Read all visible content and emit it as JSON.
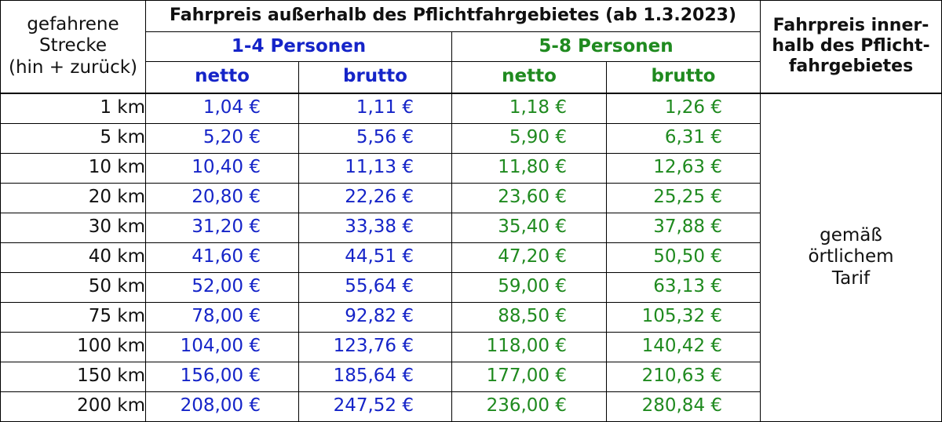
{
  "header": {
    "distance_label": "gefahrene\nStrecke\n(hin + zurück)",
    "outside_title": "Fahrpreis außerhalb des Pflichtfahrgebietes (ab 1.3.2023)",
    "group1": "1-4 Personen",
    "group2": "5-8 Personen",
    "netto": "netto",
    "brutto": "brutto",
    "inside_title": "Fahrpreis inner-\nhalb des Pflicht-\nfahrgebietes"
  },
  "inside_value": "gemäß\nörtlichem\nTarif",
  "colors": {
    "blue": "#1524c8",
    "green": "#1f8a1f"
  },
  "rows": [
    {
      "km": "1 km",
      "n1": "1,04 €",
      "b1": "1,11 €",
      "n2": "1,18 €",
      "b2": "1,26 €"
    },
    {
      "km": "5 km",
      "n1": "5,20 €",
      "b1": "5,56 €",
      "n2": "5,90 €",
      "b2": "6,31 €"
    },
    {
      "km": "10 km",
      "n1": "10,40 €",
      "b1": "11,13 €",
      "n2": "11,80 €",
      "b2": "12,63 €"
    },
    {
      "km": "20 km",
      "n1": "20,80 €",
      "b1": "22,26 €",
      "n2": "23,60 €",
      "b2": "25,25 €"
    },
    {
      "km": "30 km",
      "n1": "31,20 €",
      "b1": "33,38 €",
      "n2": "35,40 €",
      "b2": "37,88 €"
    },
    {
      "km": "40 km",
      "n1": "41,60 €",
      "b1": "44,51 €",
      "n2": "47,20 €",
      "b2": "50,50 €"
    },
    {
      "km": "50 km",
      "n1": "52,00 €",
      "b1": "55,64 €",
      "n2": "59,00 €",
      "b2": "63,13 €"
    },
    {
      "km": "75 km",
      "n1": "78,00 €",
      "b1": "92,82 €",
      "n2": "88,50 €",
      "b2": "105,32 €"
    },
    {
      "km": "100 km",
      "n1": "104,00 €",
      "b1": "123,76 €",
      "n2": "118,00 €",
      "b2": "140,42 €"
    },
    {
      "km": "150 km",
      "n1": "156,00 €",
      "b1": "185,64 €",
      "n2": "177,00 €",
      "b2": "210,63 €"
    },
    {
      "km": "200 km",
      "n1": "208,00 €",
      "b1": "247,52 €",
      "n2": "236,00 €",
      "b2": "280,84 €"
    }
  ]
}
